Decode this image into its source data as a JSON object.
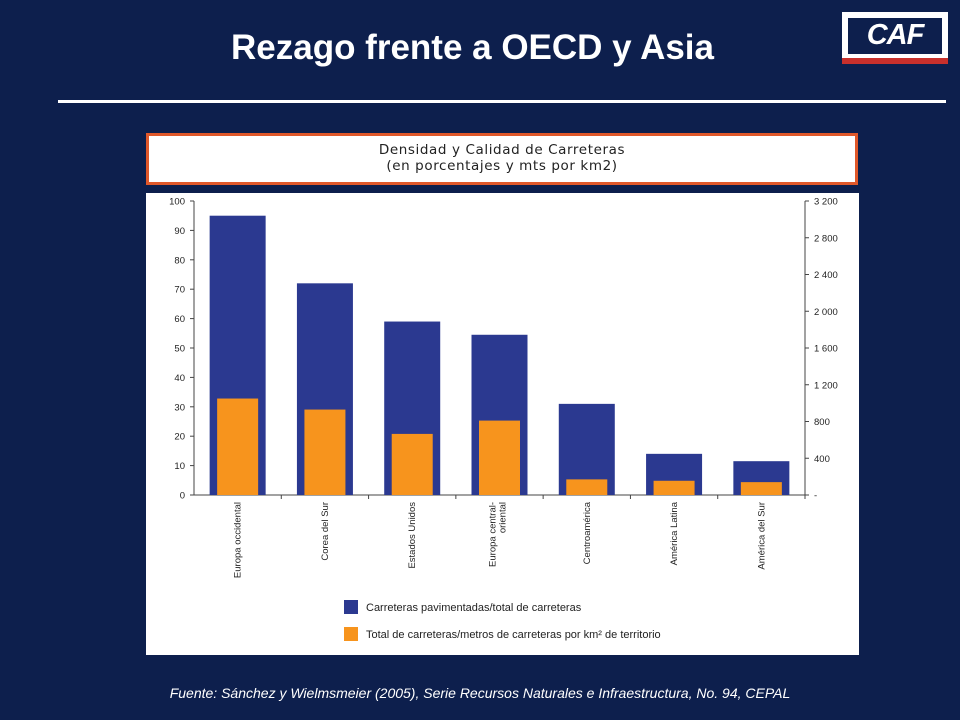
{
  "slide": {
    "title": "Rezago frente a OECD y Asia",
    "logo_text": "CAF",
    "source": "Fuente: Sánchez y Wielmsmeier (2005), Serie Recursos Naturales e Infraestructura,  No. 94, CEPAL"
  },
  "chart_header": {
    "line1": "Densidad y Calidad de Carreteras",
    "line2": "(en porcentajes y mts por km2)"
  },
  "colors": {
    "background": "#0d1f4d",
    "series_blue": "#2b3990",
    "series_orange": "#f7941d",
    "header_border": "#e0582a"
  },
  "chart_data": {
    "type": "bar",
    "categories": [
      "Europa occidental",
      "Corea del Sur",
      "Estados Unidos",
      "Europa central-\noriental",
      "Centroamérica",
      "América Latina",
      "América del Sur"
    ],
    "series": [
      {
        "name": "Carreteras pavimentadas/total de carreteras",
        "axis": "left",
        "color": "#2b3990",
        "values": [
          95,
          72,
          59,
          54.5,
          31,
          14,
          11.5
        ]
      },
      {
        "name": "Total de carreteras/metros de carreteras por km² de territorio",
        "axis": "right",
        "color": "#f7941d",
        "values": [
          1050,
          930,
          665,
          810,
          170,
          155,
          140
        ]
      }
    ],
    "y_left": {
      "range": [
        0,
        100
      ],
      "ticks": [
        "0",
        "10",
        "20",
        "30",
        "40",
        "50",
        "60",
        "70",
        "80",
        "90",
        "100"
      ]
    },
    "y_right": {
      "range": [
        0,
        3200
      ],
      "ticks": [
        "-",
        "400",
        "800",
        "1 200",
        "1 600",
        "2 000",
        "2 400",
        "2 800",
        "3 200"
      ]
    },
    "grid": false,
    "legend_position": "bottom"
  }
}
